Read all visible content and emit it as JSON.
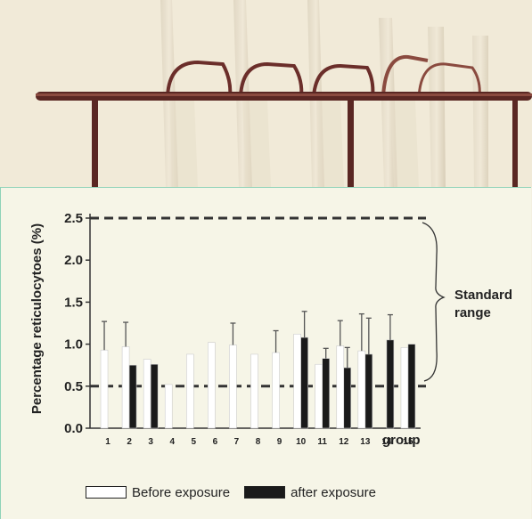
{
  "photo": {
    "description_icon": "test-tubes-in-rack-photo"
  },
  "chart_data": {
    "type": "bar",
    "ylabel": "Percentage reticulocytoes (%)",
    "xlabel": "group",
    "ylim": [
      0,
      2.5
    ],
    "yticks": [
      "0.0",
      "0.5",
      "1.0",
      "1.5",
      "2.0",
      "2.5"
    ],
    "categories": [
      "1",
      "2",
      "3",
      "4",
      "5",
      "6",
      "7",
      "8",
      "9",
      "10",
      "11",
      "12",
      "13",
      "14",
      "15"
    ],
    "series": [
      {
        "name": "Before exposure",
        "values": [
          0.93,
          0.97,
          0.82,
          0.52,
          0.88,
          1.02,
          0.99,
          0.88,
          0.9,
          1.12,
          0.76,
          0.98,
          0.92,
          0.0,
          0.96
        ],
        "errors": [
          0.34,
          0.29,
          0.0,
          0.0,
          0.0,
          0.0,
          0.26,
          0.0,
          0.26,
          0.0,
          0.0,
          0.3,
          0.44,
          0.0,
          0.0
        ],
        "color": "#ffffff"
      },
      {
        "name": "after exposure",
        "values": [
          0.0,
          0.75,
          0.76,
          0.0,
          0.0,
          0.0,
          0.0,
          0.0,
          0.0,
          1.08,
          0.83,
          0.72,
          0.88,
          1.05,
          1.0
        ],
        "errors": [
          0.0,
          0.0,
          0.0,
          0.0,
          0.0,
          0.0,
          0.0,
          0.0,
          0.0,
          0.31,
          0.12,
          0.24,
          0.43,
          0.3,
          0.0
        ],
        "color": "#1a1a1a"
      }
    ],
    "reference_lines": [
      0.5,
      2.5
    ],
    "annotation": "Standard range",
    "grid": false,
    "legend_position": "bottom-center"
  },
  "legend": {
    "before_label": "Before exposure",
    "after_label": "after exposure"
  }
}
